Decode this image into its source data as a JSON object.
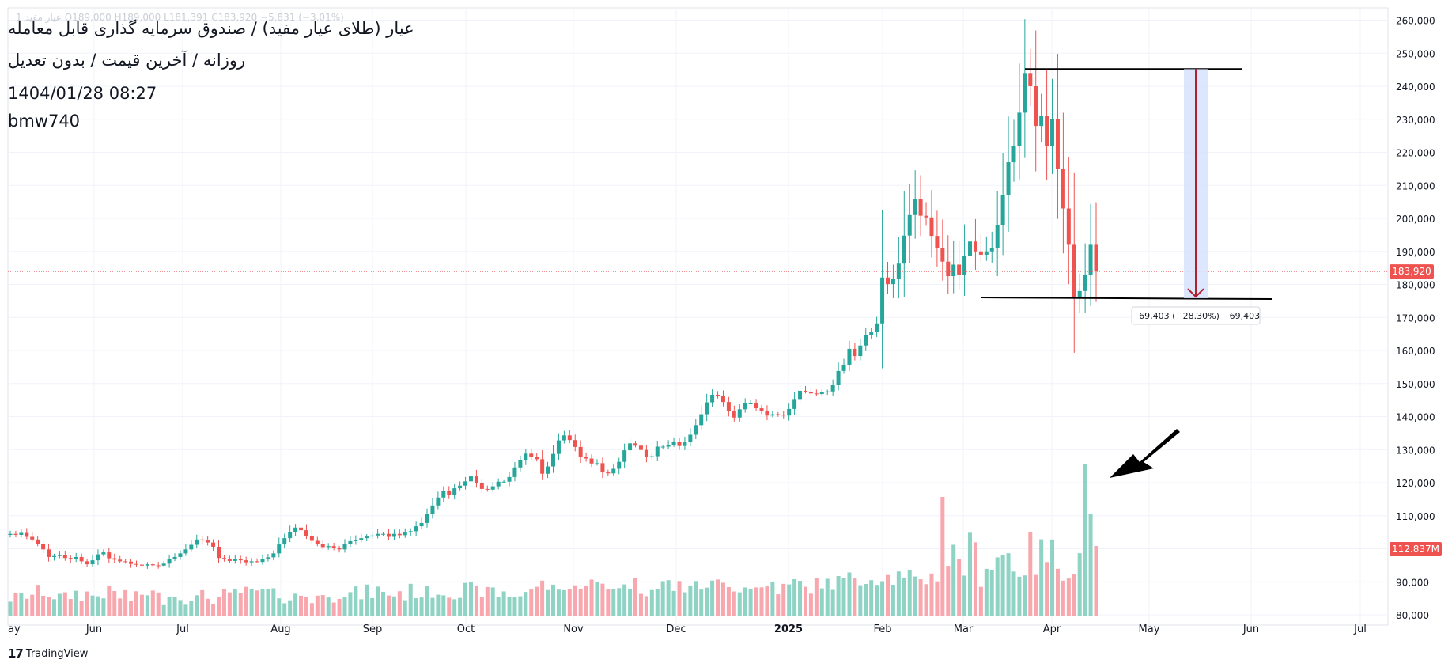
{
  "header": {
    "ohlc_line": "1  عیار مفید  O189,000  H189,000  L181,391  C183,920  −5,831 (−3.01%)",
    "title": "عیار (طلای عیار مفید) / صندوق سرمایه گذاری قابل معامله",
    "subtitle": "روزانه / آخرین قیمت / بدون تعدیل",
    "timestamp": "1404/01/28 08:27",
    "author": "bmw740"
  },
  "branding": {
    "logo_text": "TradingView",
    "logo_mark": "17"
  },
  "colors": {
    "up": "#26a69a",
    "down": "#ef5350",
    "vol_up": "#8fd3c4",
    "vol_down": "#f7a7ad",
    "range_fill": "#d6e2fb",
    "range_arrow": "#b0202e",
    "grid": "#f0f3fa"
  },
  "chart_data": {
    "type": "candlestick",
    "price_axis": {
      "ticks": [
        "80,000",
        "90,000",
        "100,000",
        "110,000",
        "120,000",
        "130,000",
        "140,000",
        "150,000",
        "160,000",
        "170,000",
        "180,000",
        "190,000",
        "200,000",
        "210,000",
        "220,000",
        "230,000",
        "240,000",
        "250,000",
        "260,000"
      ],
      "ylim": [
        79000,
        262000
      ]
    },
    "time_axis": [
      "ay",
      "Jun",
      "Jul",
      "Aug",
      "Sep",
      "Oct",
      "Nov",
      "Dec",
      "2025",
      "Feb",
      "Mar",
      "Apr",
      "May",
      "Jun",
      "Jul"
    ],
    "last_price_label": "183,920",
    "last_volume_label": "112.837M",
    "measure_label": "−69,403 (−28.30%) −69,403",
    "support_level": 175800,
    "resistance_level": 245200,
    "candle_closes": [
      104500,
      104200,
      104800,
      103600,
      102800,
      101500,
      99800,
      97500,
      97800,
      98200,
      97200,
      96800,
      97500,
      96200,
      95300,
      96500,
      98300,
      98900,
      97100,
      96700,
      96200,
      96100,
      95400,
      95200,
      94900,
      95300,
      95000,
      94900,
      95500,
      96800,
      97500,
      98600,
      99800,
      101200,
      102800,
      102500,
      101900,
      100600,
      97200,
      96800,
      96300,
      96900,
      96500,
      95900,
      96200,
      96000,
      96900,
      97400,
      98600,
      101300,
      103200,
      105000,
      106400,
      105600,
      103900,
      102400,
      101500,
      100500,
      100800,
      100200,
      99800,
      101400,
      102300,
      102700,
      103200,
      103700,
      104000,
      104500,
      104500,
      103600,
      104500,
      104100,
      104900,
      105300,
      106800,
      107800,
      110600,
      113100,
      115500,
      117500,
      116200,
      118300,
      119100,
      120400,
      121900,
      119900,
      118100,
      117900,
      118900,
      120300,
      120300,
      121700,
      124600,
      126800,
      128800,
      127800,
      127100,
      122700,
      124900,
      128700,
      132800,
      134300,
      132900,
      130800,
      127700,
      127300,
      125800,
      125900,
      123100,
      122800,
      124200,
      126300,
      129800,
      131900,
      131200,
      129900,
      127800,
      128000,
      130900,
      130900,
      131400,
      132300,
      131100,
      132200,
      134500,
      137400,
      140700,
      144300,
      146600,
      146100,
      144400,
      141700,
      139700,
      142200,
      144200,
      144200,
      142500,
      141700,
      140300,
      140700,
      140600,
      140300,
      142300,
      145300,
      147800,
      147400,
      147000,
      146800,
      147500,
      147600,
      149600,
      153800,
      155700,
      160500,
      158300,
      161500,
      164700,
      165700,
      168200,
      182100,
      180100,
      181700,
      186300,
      194800,
      201000,
      205800,
      200800,
      200300,
      194700,
      191100,
      186900,
      182500,
      186000,
      183000,
      188600,
      193000,
      190000,
      189000,
      190000,
      191000,
      198000,
      207000,
      217000,
      222000,
      232000,
      244000,
      240000,
      228000,
      231000,
      222000,
      230000,
      215000,
      203000,
      192000,
      176000,
      178000,
      183000,
      192000,
      183900
    ]
  },
  "volume": {
    "ylim": [
      0,
      145
    ]
  }
}
